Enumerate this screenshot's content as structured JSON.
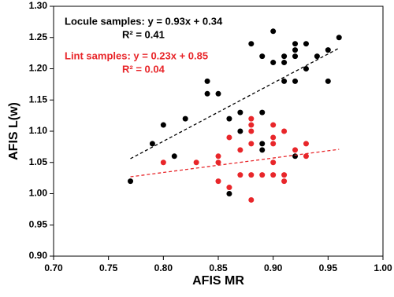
{
  "chart_data": {
    "type": "scatter",
    "xlabel": "AFIS MR",
    "ylabel": "AFIS L(w)",
    "xlim": [
      0.7,
      1.0
    ],
    "xticks": [
      {
        "value": 0.7,
        "label": "0.70"
      },
      {
        "value": 0.75,
        "label": "0.75"
      },
      {
        "value": 0.8,
        "label": "0.80"
      },
      {
        "value": 0.85,
        "label": "0.85"
      },
      {
        "value": 0.9,
        "label": "0.90"
      },
      {
        "value": 0.95,
        "label": "0.95"
      },
      {
        "value": 1.0,
        "label": "1.00"
      }
    ],
    "ylim": [
      0.9,
      1.3
    ],
    "yticks": [
      {
        "value": 0.9,
        "label": "0.90"
      },
      {
        "value": 0.95,
        "label": "0.95"
      },
      {
        "value": 1.0,
        "label": "1.00"
      },
      {
        "value": 1.05,
        "label": "1.05"
      },
      {
        "value": 1.1,
        "label": "1.10"
      },
      {
        "value": 1.15,
        "label": "1.15"
      },
      {
        "value": 1.2,
        "label": "1.20"
      },
      {
        "value": 1.25,
        "label": "1.25"
      },
      {
        "value": 1.3,
        "label": "1.30"
      }
    ],
    "series": [
      {
        "color": "#000000",
        "equation": "Locule samples: y = 0.93x + 0.34",
        "r2": "R² = 0.41",
        "x": [
          0.77,
          0.79,
          0.8,
          0.81,
          0.82,
          0.84,
          0.84,
          0.85,
          0.86,
          0.86,
          0.87,
          0.87,
          0.88,
          0.89,
          0.9,
          0.9,
          0.91,
          0.91,
          0.91,
          0.92,
          0.92,
          0.92,
          0.92,
          0.92,
          0.93,
          0.93,
          0.94,
          0.95,
          0.95,
          0.96,
          0.89,
          0.89,
          0.89
        ],
        "values": [
          1.02,
          1.08,
          1.11,
          1.06,
          1.12,
          1.18,
          1.16,
          1.16,
          1.12,
          1.0,
          1.1,
          1.13,
          1.24,
          1.22,
          1.26,
          1.21,
          1.22,
          1.21,
          1.18,
          1.24,
          1.23,
          1.22,
          1.18,
          1.06,
          1.24,
          1.2,
          1.22,
          1.23,
          1.18,
          1.25,
          1.08,
          1.07,
          1.13
        ],
        "trend_x": [
          0.77,
          0.96
        ],
        "trend_y": [
          1.056,
          1.233
        ]
      },
      {
        "color": "#e8262a",
        "equation": "Lint samples: y = 0.23x + 0.85",
        "r2": "R² = 0.04",
        "x": [
          0.8,
          0.83,
          0.85,
          0.85,
          0.85,
          0.86,
          0.86,
          0.87,
          0.87,
          0.88,
          0.88,
          0.88,
          0.88,
          0.88,
          0.88,
          0.89,
          0.9,
          0.9,
          0.9,
          0.9,
          0.9,
          0.91,
          0.91,
          0.91,
          0.92,
          0.93,
          0.93
        ],
        "values": [
          1.05,
          1.05,
          1.06,
          1.05,
          1.02,
          1.09,
          1.01,
          1.07,
          1.03,
          1.12,
          1.11,
          1.1,
          1.08,
          1.03,
          0.99,
          1.03,
          1.11,
          1.09,
          1.08,
          1.05,
          1.03,
          1.1,
          1.03,
          1.02,
          1.07,
          1.08,
          1.06
        ],
        "trend_x": [
          0.77,
          0.96
        ],
        "trend_y": [
          1.027,
          1.071
        ]
      }
    ]
  }
}
